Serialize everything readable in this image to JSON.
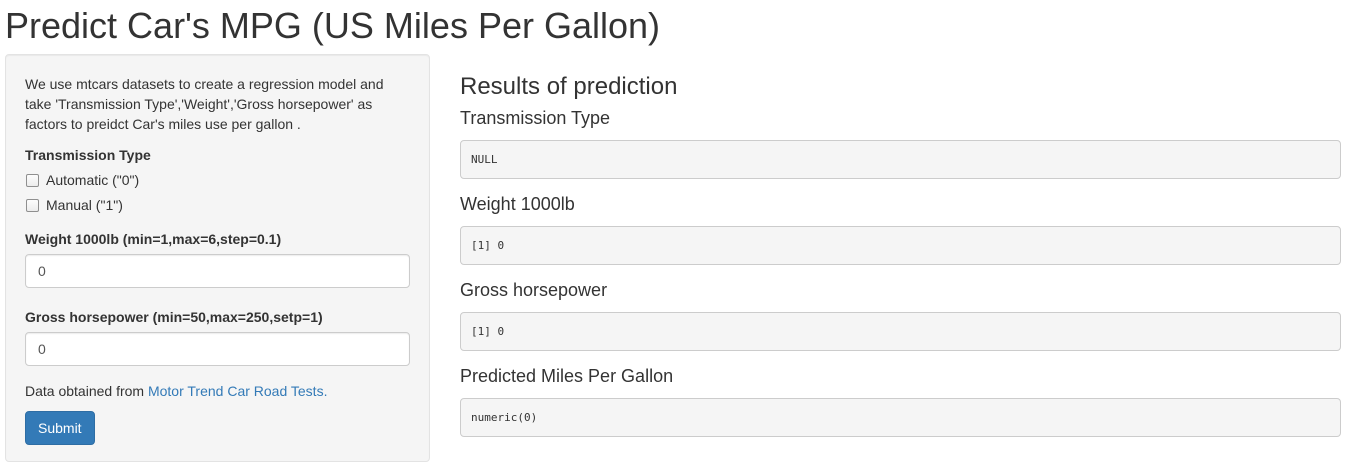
{
  "page": {
    "title": "Predict Car's MPG (US Miles Per Gallon)"
  },
  "sidebar": {
    "intro": "We use mtcars datasets to create a regression model and take 'Transmission Type','Weight','Gross horsepower' as factors to preidct Car's miles use per gallon .",
    "transmission": {
      "label": "Transmission Type",
      "options": [
        {
          "label": "Automatic (\"0\")",
          "checked": false
        },
        {
          "label": "Manual (\"1\")",
          "checked": false
        }
      ]
    },
    "weight": {
      "label": "Weight 1000lb (min=1,max=6,step=0.1)",
      "value": "0"
    },
    "horsepower": {
      "label": "Gross horsepower (min=50,max=250,setp=1)",
      "value": "0"
    },
    "source": {
      "prefix": "Data obtained from ",
      "link_text": "Motor Trend Car Road Tests."
    },
    "submit_label": "Submit"
  },
  "main": {
    "title": "Results of prediction",
    "results": [
      {
        "label": "Transmission Type",
        "output": "NULL"
      },
      {
        "label": "Weight 1000lb",
        "output": "[1] 0"
      },
      {
        "label": "Gross horsepower",
        "output": "[1] 0"
      },
      {
        "label": "Predicted Miles Per Gallon",
        "output": "numeric(0)"
      }
    ]
  },
  "colors": {
    "accent": "#337ab7",
    "panel_bg": "#f5f5f5",
    "text": "#333333"
  }
}
